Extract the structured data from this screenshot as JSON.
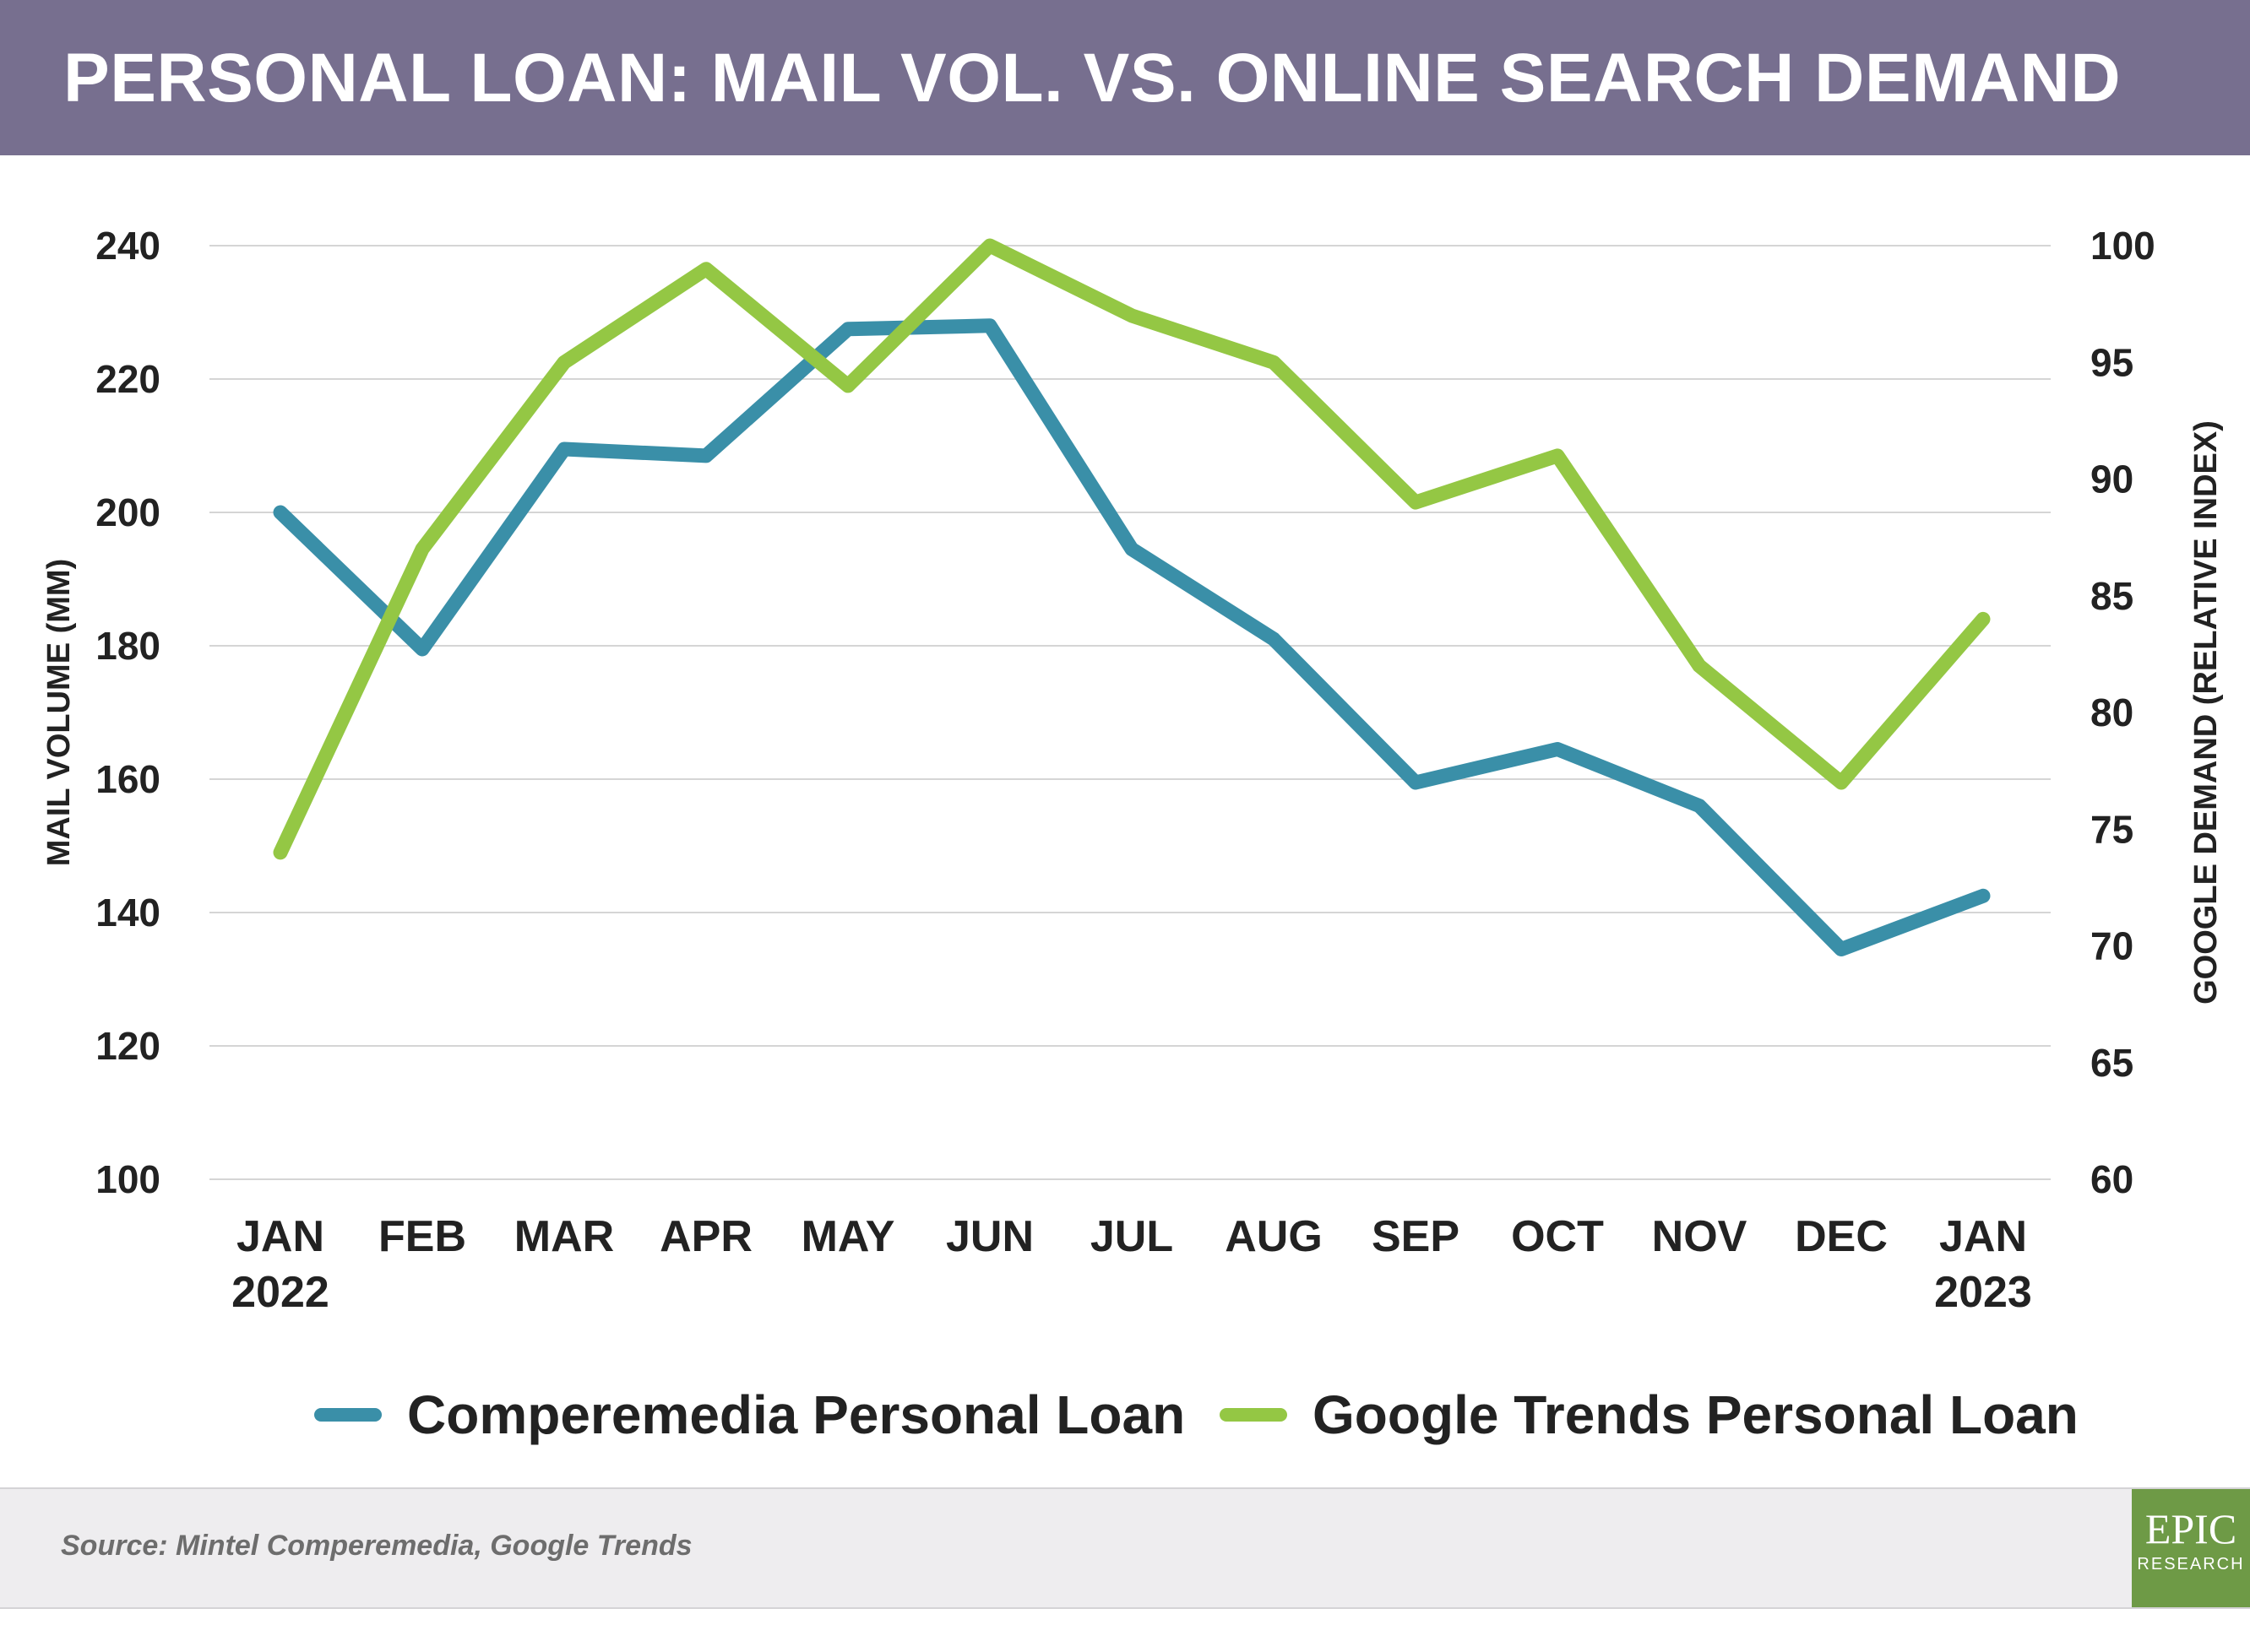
{
  "header": {
    "title": "PERSONAL LOAN: MAIL VOL. VS. ONLINE SEARCH DEMAND"
  },
  "chart_data": {
    "type": "line",
    "categories": [
      [
        "JAN",
        "2022"
      ],
      [
        "FEB"
      ],
      [
        "MAR"
      ],
      [
        "APR"
      ],
      [
        "MAY"
      ],
      [
        "JUN"
      ],
      [
        "JUL"
      ],
      [
        "AUG"
      ],
      [
        "SEP"
      ],
      [
        "OCT"
      ],
      [
        "NOV"
      ],
      [
        "DEC"
      ],
      [
        "JAN",
        "2023"
      ]
    ],
    "y_left": {
      "label": "MAIL VOLUME (MM)",
      "range": [
        100,
        240
      ],
      "ticks": [
        100,
        120,
        140,
        160,
        180,
        200,
        220,
        240
      ]
    },
    "y_right": {
      "label": "GOOGLE DEMAND (RELATIVE INDEX)",
      "range": [
        60,
        100
      ],
      "ticks": [
        60,
        65,
        70,
        75,
        80,
        85,
        90,
        95,
        100
      ]
    },
    "grid": true,
    "legend_position": "bottom",
    "series": [
      {
        "name": "Comperemedia Personal Loan",
        "axis": "left",
        "color": "#3a8fa8",
        "values": [
          200,
          179.5,
          209.5,
          208.5,
          227.5,
          228,
          194.5,
          181,
          159.5,
          164.5,
          156,
          134.5,
          142.5
        ]
      },
      {
        "name": "Google Trends Personal Loan",
        "axis": "right",
        "color": "#94c744",
        "values": [
          74,
          87,
          95,
          99,
          94,
          100,
          97,
          95,
          89,
          91,
          82,
          77,
          84
        ]
      }
    ]
  },
  "footer": {
    "source": "Source: Mintel Comperemedia, Google Trends"
  },
  "logo": {
    "main": "EPIC",
    "sub": "RESEARCH"
  }
}
